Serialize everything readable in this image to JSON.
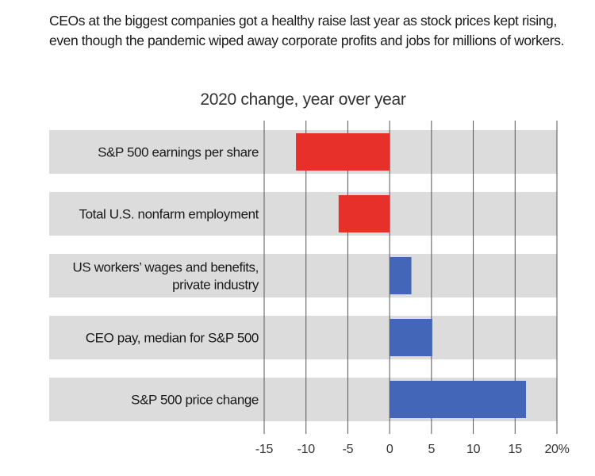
{
  "header": {
    "subtitle_line1": "CEOs at the biggest companies got a healthy raise last year as stock prices kept rising,",
    "subtitle_line2": "even though the pandemic wiped away corporate profits and jobs for millions of workers."
  },
  "colors": {
    "negative": "#e8302a",
    "positive": "#4466b8",
    "band": "#dcdcdc",
    "gridline": "#555555"
  },
  "chart_data": {
    "type": "bar",
    "orientation": "horizontal",
    "title": "2020 change, year over year",
    "categories": [
      [
        "S&P 500 earnings per share"
      ],
      [
        "Total U.S. nonfarm employment"
      ],
      [
        "US workers’ wages and benefits,",
        "private industry"
      ],
      [
        "CEO pay, median for S&P 500"
      ],
      [
        "S&P 500 price change"
      ]
    ],
    "values": [
      -11.2,
      -6.1,
      2.6,
      5.1,
      16.3
    ],
    "xlim": [
      -15,
      20
    ],
    "ticks": [
      -15,
      -10,
      -5,
      0,
      5,
      10,
      15,
      20
    ],
    "tick_labels": [
      "-15",
      "-10",
      "-5",
      "0",
      "5",
      "10",
      "15",
      "20%"
    ],
    "xlabel": "",
    "ylabel": "",
    "grid": true
  }
}
